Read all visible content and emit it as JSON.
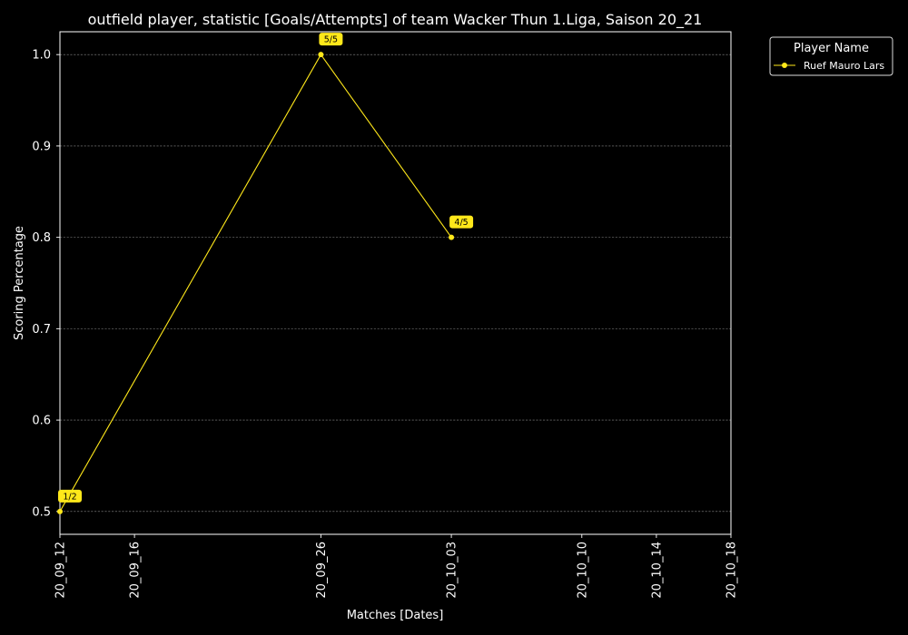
{
  "chart_data": {
    "type": "line",
    "title": "outfield player, statistic [Goals/Attempts] of team Wacker Thun 1.Liga, Saison 20_21",
    "xlabel": "Matches [Dates]",
    "ylabel": "Scoring Percentage",
    "x_tick_labels": [
      "20_09_12",
      "20_09_16",
      "20_09_26",
      "20_10_03",
      "20_10_10",
      "20_10_14",
      "20_10_18"
    ],
    "y_ticks": [
      0.5,
      0.6,
      0.7,
      0.8,
      0.9,
      1.0
    ],
    "y_tick_labels": [
      "0.5",
      "0.6",
      "0.7",
      "0.8",
      "0.9",
      "1.0"
    ],
    "ylim": [
      0.475,
      1.025
    ],
    "grid": "y-dashed",
    "legend": {
      "title": "Player Name",
      "placement": "outside-top-right"
    },
    "series": [
      {
        "name": "Ruef Mauro Lars",
        "color": "#FFE81A",
        "points": [
          {
            "x": "20_09_12",
            "y": 0.5,
            "label": "1/2"
          },
          {
            "x": "20_09_26",
            "y": 1.0,
            "label": "5/5"
          },
          {
            "x": "20_10_03",
            "y": 0.8,
            "label": "4/5"
          }
        ]
      }
    ]
  }
}
